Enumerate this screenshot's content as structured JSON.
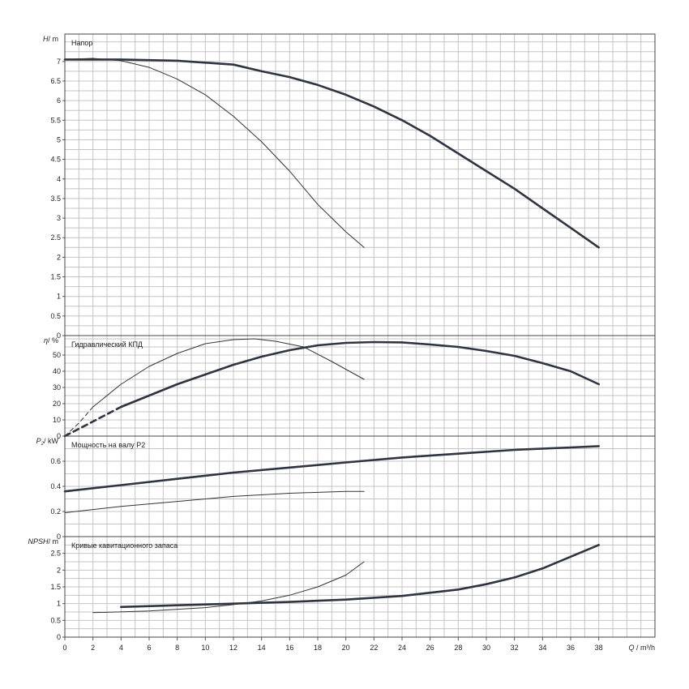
{
  "chart_data": {
    "type": "line",
    "grid": true,
    "x_axis": {
      "label_symbol": "Q",
      "label_unit": "m³/h",
      "range": [
        0,
        42
      ],
      "ticks": [
        "0",
        "2",
        "4",
        "6",
        "8",
        "10",
        "12",
        "14",
        "16",
        "18",
        "20",
        "22",
        "24",
        "26",
        "28",
        "30",
        "32",
        "34",
        "36",
        "38"
      ],
      "tick_values": [
        0,
        2,
        4,
        6,
        8,
        10,
        12,
        14,
        16,
        18,
        20,
        22,
        24,
        26,
        28,
        30,
        32,
        34,
        36,
        38
      ]
    },
    "panels": [
      {
        "id": "head",
        "title": "Напор",
        "ylabel_symbol": "H",
        "ylabel_unit": "m",
        "ylim": [
          0,
          7.7
        ],
        "yticks": [
          "0",
          "0.5",
          "1",
          "1.5",
          "2",
          "2.5",
          "3",
          "3.5",
          "4",
          "4.5",
          "5",
          "5.5",
          "6",
          "6.5",
          "7"
        ],
        "ytick_values": [
          0,
          0.5,
          1,
          1.5,
          2,
          2.5,
          3,
          3.5,
          4,
          4.5,
          5,
          5.5,
          6,
          6.5,
          7
        ],
        "series": [
          {
            "style": "thick",
            "x": [
              0,
              4,
              8,
              12,
              14,
              16,
              18,
              20,
              22,
              24,
              26,
              28,
              30,
              32,
              34,
              36,
              38
            ],
            "y": [
              7.05,
              7.05,
              7.02,
              6.92,
              6.75,
              6.6,
              6.4,
              6.15,
              5.85,
              5.5,
              5.1,
              4.65,
              4.2,
              3.75,
              3.25,
              2.75,
              2.25
            ]
          },
          {
            "style": "thin",
            "x": [
              0,
              2,
              4,
              6,
              8,
              10,
              12,
              14,
              16,
              18,
              20,
              21.3
            ],
            "y": [
              7.05,
              7.08,
              7.02,
              6.85,
              6.55,
              6.15,
              5.6,
              4.95,
              4.2,
              3.35,
              2.65,
              2.25
            ]
          }
        ]
      },
      {
        "id": "efficiency",
        "title": "Гидравлический КПД",
        "ylabel_symbol": "η",
        "ylabel_unit": "%",
        "ylim": [
          0,
          62
        ],
        "yticks": [
          "0",
          "10",
          "20",
          "30",
          "40",
          "50"
        ],
        "ytick_values": [
          0,
          10,
          20,
          30,
          40,
          50
        ],
        "series": [
          {
            "style": "thick",
            "x": [
              4,
              6,
              8,
              10,
              12,
              14,
              16,
              18,
              20,
              22,
              24,
              26,
              28,
              30,
              32,
              34,
              36,
              38
            ],
            "y": [
              18,
              25,
              32,
              38,
              44,
              49,
              53,
              56,
              57.5,
              58,
              57.8,
              56.5,
              55,
              52.5,
              49.5,
              45,
              40,
              32
            ]
          },
          {
            "style": "thick-dashed",
            "x": [
              0,
              2,
              4
            ],
            "y": [
              0,
              9,
              18
            ]
          },
          {
            "style": "thin",
            "x": [
              2,
              4,
              6,
              8,
              10,
              12,
              13.5,
              15,
              17,
              19,
              21.3
            ],
            "y": [
              18,
              32,
              43,
              51,
              57,
              59.5,
              60,
              58.5,
              55,
              46,
              35
            ]
          },
          {
            "style": "thin-dashed",
            "x": [
              0,
              1,
              2
            ],
            "y": [
              0,
              8,
              18
            ]
          }
        ]
      },
      {
        "id": "power",
        "title": "Мощность на валу P2",
        "ylabel_symbol": "P",
        "ylabel_sub": "2",
        "ylabel_unit": "kW",
        "ylim": [
          0,
          0.8
        ],
        "yticks": [
          "0",
          "0.2",
          "0.4",
          "0.6"
        ],
        "ytick_values": [
          0,
          0.2,
          0.4,
          0.6
        ],
        "series": [
          {
            "style": "thick",
            "x": [
              0,
              4,
              8,
              12,
              16,
              20,
              24,
              28,
              32,
              36,
              38
            ],
            "y": [
              0.36,
              0.41,
              0.46,
              0.51,
              0.55,
              0.59,
              0.63,
              0.66,
              0.69,
              0.71,
              0.72
            ]
          },
          {
            "style": "thin",
            "x": [
              0,
              4,
              8,
              12,
              16,
              20,
              21.3
            ],
            "y": [
              0.19,
              0.24,
              0.28,
              0.32,
              0.345,
              0.36,
              0.36
            ]
          }
        ]
      },
      {
        "id": "npsh",
        "title": "Кривые кавитационного запаса",
        "ylabel_symbol": "NPSH",
        "ylabel_unit": "m",
        "ylim": [
          0,
          3
        ],
        "yticks": [
          "0",
          "0.5",
          "1",
          "1.5",
          "2",
          "2.5"
        ],
        "ytick_values": [
          0,
          0.5,
          1,
          1.5,
          2,
          2.5
        ],
        "series": [
          {
            "style": "thick",
            "x": [
              4,
              8,
              12,
              16,
              20,
              24,
              28,
              30,
              32,
              34,
              36,
              38
            ],
            "y": [
              0.9,
              0.95,
              1.0,
              1.05,
              1.12,
              1.23,
              1.42,
              1.58,
              1.78,
              2.05,
              2.4,
              2.75
            ]
          },
          {
            "style": "thin",
            "x": [
              2,
              6,
              10,
              12,
              14,
              16,
              18,
              20,
              21.3
            ],
            "y": [
              0.73,
              0.78,
              0.88,
              0.97,
              1.08,
              1.25,
              1.5,
              1.85,
              2.25
            ]
          }
        ]
      }
    ]
  }
}
